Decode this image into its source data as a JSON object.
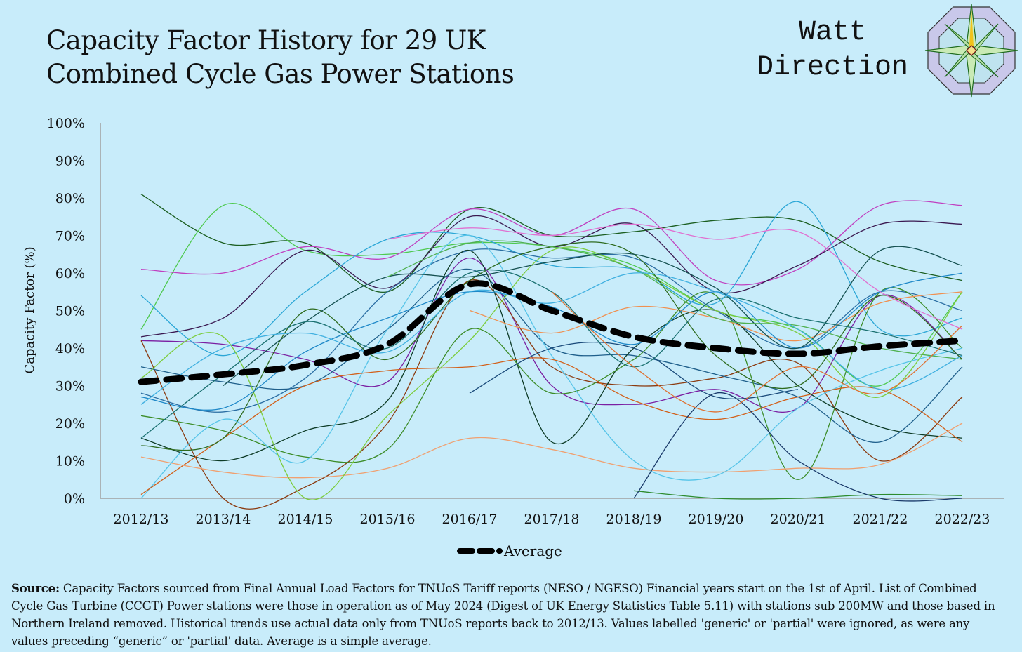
{
  "header": {
    "title_line1": "Capacity Factor History for 29 UK",
    "title_line2": "Combined Cycle Gas Power Stations",
    "brand_line1": "Watt",
    "brand_line2": "Direction"
  },
  "chart_data": {
    "type": "line",
    "title": "Capacity Factor History for 29 UK Combined Cycle Gas Power Stations",
    "xlabel": "",
    "ylabel": "Capacity Factor (%)",
    "ylim": [
      0,
      100
    ],
    "yticks": [
      "0%",
      "10%",
      "20%",
      "30%",
      "40%",
      "50%",
      "60%",
      "70%",
      "80%",
      "90%",
      "100%"
    ],
    "categories": [
      "2012/13",
      "2013/14",
      "2014/15",
      "2015/16",
      "2016/17",
      "2017/18",
      "2018/19",
      "2019/20",
      "2020/21",
      "2021/22",
      "2022/23"
    ],
    "legend": {
      "label": "Average",
      "placement": "bottom"
    },
    "average": [
      31,
      33,
      35.5,
      41,
      57,
      50,
      43,
      40,
      38.5,
      40.5,
      42
    ],
    "series": [
      {
        "color": "#1b5e20",
        "values": [
          81,
          68,
          68,
          55,
          77,
          70,
          71,
          74,
          74,
          63,
          58
        ]
      },
      {
        "color": "#4ec94e",
        "values": [
          45,
          78,
          66,
          65,
          68,
          67,
          62,
          50,
          45,
          30,
          55
        ]
      },
      {
        "color": "#c040c0",
        "values": [
          61,
          60,
          67,
          64,
          77,
          70,
          77,
          58,
          61,
          78,
          78
        ]
      },
      {
        "color": "#3a1850",
        "values": [
          43,
          48,
          66,
          56,
          75,
          67,
          73,
          55,
          62,
          73,
          73
        ]
      },
      {
        "color": "#2aa6d6",
        "values": [
          54,
          38,
          55,
          69,
          70,
          62,
          61,
          52,
          79,
          45,
          48
        ]
      },
      {
        "color": "#7b1fa2",
        "values": [
          42,
          41,
          37,
          31,
          64,
          30,
          25,
          29,
          24,
          54,
          37
        ]
      },
      {
        "color": "#8b3a0f",
        "values": [
          42,
          0,
          3,
          20,
          58,
          35,
          30,
          32,
          36,
          10,
          27
        ]
      },
      {
        "color": "#1f5f8b",
        "values": [
          35,
          31,
          30,
          45,
          61,
          40,
          38,
          33,
          27,
          15,
          35
        ]
      },
      {
        "color": "#2b6ea3",
        "values": [
          28,
          23,
          32,
          55,
          66,
          64,
          64,
          50,
          40,
          55,
          50
        ]
      },
      {
        "color": "#0d3b26",
        "values": [
          16,
          10,
          18,
          26,
          66,
          15,
          40,
          50,
          30,
          19,
          16
        ]
      },
      {
        "color": "#3c8c28",
        "values": [
          22,
          18,
          11,
          13,
          45,
          28,
          37,
          54,
          5,
          55,
          40
        ]
      },
      {
        "color": "#56c4e8",
        "values": [
          0,
          21,
          10,
          45,
          70,
          38,
          10,
          6,
          24,
          34,
          40
        ]
      },
      {
        "color": "#d2601a",
        "values": [
          1,
          16,
          30,
          34,
          35,
          37,
          26,
          21,
          27,
          29,
          15
        ]
      },
      {
        "color": "#f0a070",
        "values": [
          11,
          7,
          5.5,
          8,
          16,
          13,
          8,
          7,
          8,
          9,
          20
        ]
      },
      {
        "color": "#f09050",
        "values": [
          null,
          null,
          null,
          null,
          50,
          44,
          51,
          48,
          42,
          52,
          55
        ]
      },
      {
        "color": "#7ccc3c",
        "values": [
          32,
          43,
          0,
          22,
          42,
          66,
          61,
          50,
          44,
          27,
          55
        ]
      },
      {
        "color": "#2e6b1e",
        "values": [
          14,
          16,
          50,
          37,
          58,
          67,
          65,
          38,
          30,
          54,
          37
        ]
      },
      {
        "color": "#1e88c8",
        "values": [
          27,
          24,
          39,
          48,
          55,
          51,
          41,
          55,
          40,
          55,
          60
        ]
      },
      {
        "color": "#145050",
        "values": [
          null,
          30,
          47,
          59,
          59,
          63,
          65,
          56,
          40,
          66,
          62
        ]
      },
      {
        "color": "#e070d0",
        "values": [
          null,
          null,
          null,
          69,
          72,
          70,
          73,
          69,
          71,
          55,
          45
        ]
      },
      {
        "color": "#50b050",
        "values": [
          null,
          null,
          null,
          59,
          68,
          67,
          61,
          48,
          46,
          40,
          37
        ]
      },
      {
        "color": "#1a4a7a",
        "values": [
          null,
          null,
          null,
          null,
          28,
          40,
          40,
          27,
          29,
          null,
          null
        ]
      },
      {
        "color": "#2e8b2e",
        "values": [
          null,
          null,
          null,
          null,
          null,
          null,
          2,
          0,
          0,
          1,
          0.7
        ]
      },
      {
        "color": "#1a3a6a",
        "values": [
          null,
          null,
          null,
          null,
          null,
          null,
          0,
          28,
          10,
          0,
          0
        ]
      },
      {
        "color": "#1a7070",
        "values": [
          16,
          33,
          47,
          40,
          60,
          55,
          35,
          53,
          48,
          44,
          38
        ]
      },
      {
        "color": "#40b0e0",
        "values": [
          25,
          40,
          44,
          39,
          55,
          52,
          60,
          55,
          45,
          29,
          38
        ]
      },
      {
        "color": "#e07030",
        "values": [
          null,
          null,
          null,
          null,
          null,
          55,
          35,
          23,
          35,
          28,
          46
        ]
      }
    ]
  },
  "footnote": {
    "source_label": "Source:",
    "text": " Capacity Factors sourced from Final Annual Load Factors for TNUoS Tariff reports (NESO / NGESO) Financial years start on the 1st of April.  List of Combined Cycle Gas Turbine (CCGT) Power stations were those in operation as of May 2024 (Digest of UK Energy Statistics Table 5.11) with stations sub 200MW and those based in Northern Ireland removed. Historical trends use actual data only from TNUoS reports back to 2012/13. Values labelled 'generic' or 'partial' were ignored, as were any values preceding “generic” or 'partial' data. Average is a simple average."
  }
}
